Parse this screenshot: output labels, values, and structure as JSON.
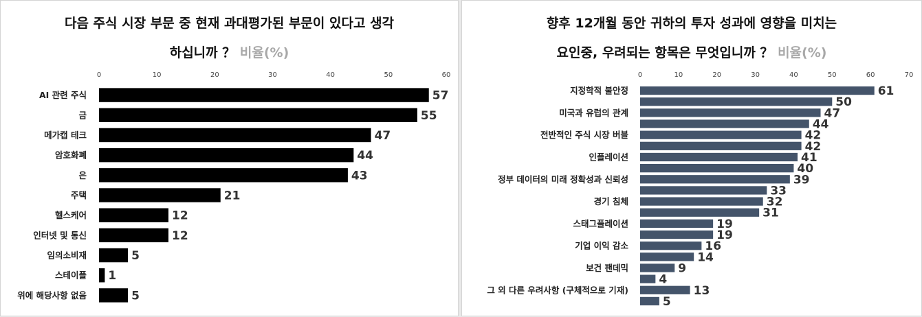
{
  "chart_data": [
    {
      "type": "bar",
      "orientation": "horizontal",
      "title_line1": "다음 주식 시장 부문 중 현재 과대평가된 부문이 있다고 생각",
      "title_line2": "하십니까 ？",
      "title_unit": "비율(%)",
      "categories": [
        "AI 관련 주식",
        "금",
        "메가캡 테크",
        "암호화폐",
        "은",
        "주택",
        "헬스케어",
        "인터넷 및 통신",
        "임의소비재",
        "스테이플",
        "위에 해당사항 없음"
      ],
      "values": [
        57,
        55,
        47,
        44,
        43,
        21,
        12,
        12,
        5,
        1,
        5
      ],
      "xlim": [
        0,
        60
      ],
      "ticks": [
        "0",
        "10",
        "20",
        "30",
        "40",
        "50",
        "60"
      ],
      "bar_color": "#000000",
      "axis_position": "top"
    },
    {
      "type": "bar",
      "orientation": "horizontal",
      "title_line1": "향후 12개월 동안 귀하의 투자 성과에 영향을 미치는",
      "title_line2": "요인중, 우려되는 항목은 무엇입니까 ？",
      "title_unit": "비율(%)",
      "categories": [
        "지정학적 불안정",
        "",
        "미국과 유럽의 관계",
        "",
        "전반적인 주식 시장 버블",
        "",
        "인플레이션",
        "",
        "정부 데이터의 미래 정확성과 신뢰성",
        "",
        "경기 침체",
        "",
        "스태그플레이션",
        "",
        "기업 이익 감소",
        "",
        "보건 팬데믹",
        "",
        "그 외 다른 우려사항 (구체적으로 기재)",
        ""
      ],
      "values": [
        61,
        50,
        47,
        44,
        42,
        42,
        41,
        40,
        39,
        33,
        32,
        31,
        19,
        19,
        16,
        14,
        9,
        4,
        13,
        5
      ],
      "xlim": [
        0,
        70
      ],
      "ticks": [
        "0",
        "10",
        "20",
        "30",
        "40",
        "50",
        "60",
        "70"
      ],
      "bar_color": "#44546a",
      "axis_position": "top"
    }
  ]
}
